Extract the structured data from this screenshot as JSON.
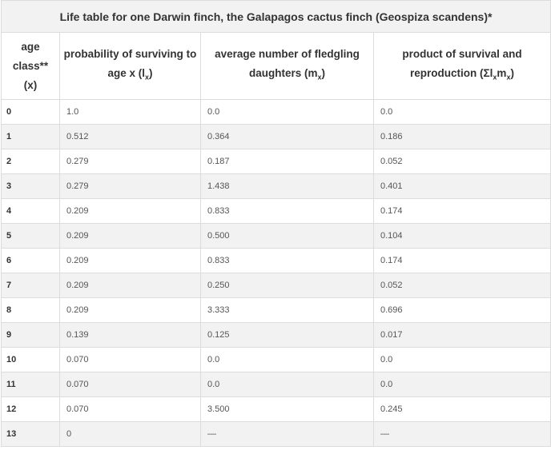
{
  "caption": "Life table for one Darwin finch, the Galapagos cactus finch (Geospiza scandens)*",
  "headers": {
    "age_line1": "age",
    "age_line2": "class**",
    "age_line3": "(x)",
    "surv_text": "probability of surviving to age x (l",
    "surv_sub": "x",
    "surv_end": ")",
    "dau_text": "average number of fledgling daughters (m",
    "dau_sub": "x",
    "dau_end": ")",
    "prod_text": "product of survival and reproduction (Σl",
    "prod_sub1": "x",
    "prod_mid": "m",
    "prod_sub2": "x",
    "prod_end": ")"
  },
  "rows": [
    [
      "0",
      "1.0",
      "0.0",
      "0.0"
    ],
    [
      "1",
      "0.512",
      "0.364",
      "0.186"
    ],
    [
      "2",
      "0.279",
      "0.187",
      "0.052"
    ],
    [
      "3",
      "0.279",
      "1.438",
      "0.401"
    ],
    [
      "4",
      "0.209",
      "0.833",
      "0.174"
    ],
    [
      "5",
      "0.209",
      "0.500",
      "0.104"
    ],
    [
      "6",
      "0.209",
      "0.833",
      "0.174"
    ],
    [
      "7",
      "0.209",
      "0.250",
      "0.052"
    ],
    [
      "8",
      "0.209",
      "3.333",
      "0.696"
    ],
    [
      "9",
      "0.139",
      "0.125",
      "0.017"
    ],
    [
      "10",
      "0.070",
      "0.0",
      "0.0"
    ],
    [
      "11",
      "0.070",
      "0.0",
      "0.0"
    ],
    [
      "12",
      "0.070",
      "3.500",
      "0.245"
    ],
    [
      "13",
      "0",
      "—",
      "—"
    ]
  ]
}
